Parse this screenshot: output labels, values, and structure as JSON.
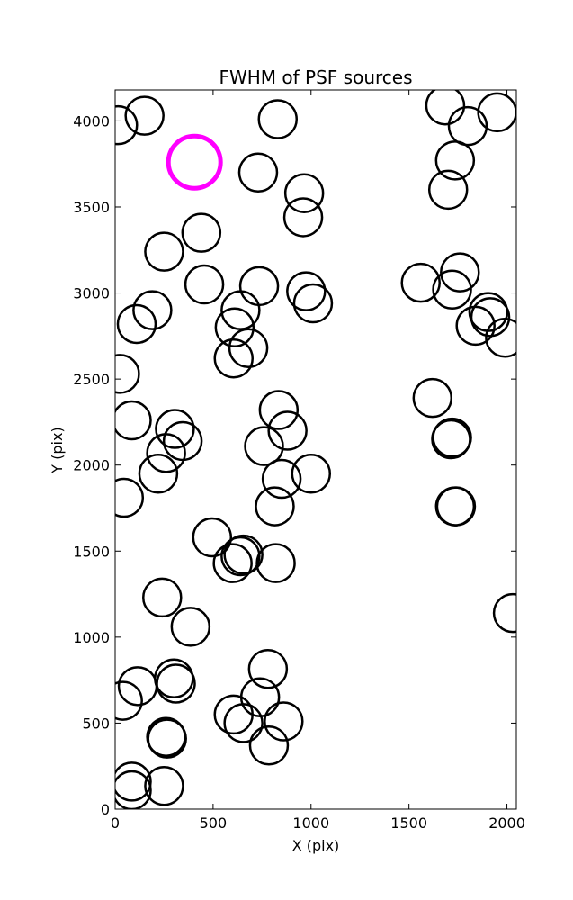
{
  "chart_data": {
    "type": "scatter",
    "title": "FWHM of PSF sources",
    "xlabel": "X (pix)",
    "ylabel": "Y (pix)",
    "xlim": [
      0,
      2048
    ],
    "ylim": [
      0,
      4180
    ],
    "xticks": [
      0,
      500,
      1000,
      1500,
      2000
    ],
    "yticks": [
      0,
      500,
      1000,
      1500,
      2000,
      2500,
      3000,
      3500,
      4000
    ],
    "grid": false,
    "marker": "open circle",
    "highlight_color": "#ff00ff",
    "default_color": "#000000",
    "points": [
      {
        "x": 15,
        "y": 3975
      },
      {
        "x": 150,
        "y": 4030
      },
      {
        "x": 830,
        "y": 4010
      },
      {
        "x": 1685,
        "y": 4090
      },
      {
        "x": 1800,
        "y": 3970
      },
      {
        "x": 1950,
        "y": 4050
      },
      {
        "x": 730,
        "y": 3700
      },
      {
        "x": 1735,
        "y": 3770
      },
      {
        "x": 965,
        "y": 3580
      },
      {
        "x": 1700,
        "y": 3600
      },
      {
        "x": 960,
        "y": 3440
      },
      {
        "x": 440,
        "y": 3350
      },
      {
        "x": 250,
        "y": 3240
      },
      {
        "x": 1760,
        "y": 3120
      },
      {
        "x": 455,
        "y": 3050
      },
      {
        "x": 735,
        "y": 3040
      },
      {
        "x": 1560,
        "y": 3060
      },
      {
        "x": 975,
        "y": 3010
      },
      {
        "x": 1720,
        "y": 3020
      },
      {
        "x": 1010,
        "y": 2940
      },
      {
        "x": 190,
        "y": 2900
      },
      {
        "x": 640,
        "y": 2900
      },
      {
        "x": 1905,
        "y": 2890
      },
      {
        "x": 110,
        "y": 2820
      },
      {
        "x": 610,
        "y": 2800
      },
      {
        "x": 1840,
        "y": 2810
      },
      {
        "x": 1915,
        "y": 2860
      },
      {
        "x": 1990,
        "y": 2740
      },
      {
        "x": 680,
        "y": 2680
      },
      {
        "x": 605,
        "y": 2620
      },
      {
        "x": 25,
        "y": 2530
      },
      {
        "x": 1620,
        "y": 2390
      },
      {
        "x": 835,
        "y": 2320
      },
      {
        "x": 85,
        "y": 2260
      },
      {
        "x": 305,
        "y": 2210
      },
      {
        "x": 880,
        "y": 2200
      },
      {
        "x": 345,
        "y": 2140
      },
      {
        "x": 1720,
        "y": 2160
      },
      {
        "x": 1715,
        "y": 2150
      },
      {
        "x": 760,
        "y": 2110
      },
      {
        "x": 260,
        "y": 2070
      },
      {
        "x": 850,
        "y": 1920
      },
      {
        "x": 1000,
        "y": 1950
      },
      {
        "x": 220,
        "y": 1950
      },
      {
        "x": 45,
        "y": 1810
      },
      {
        "x": 815,
        "y": 1760
      },
      {
        "x": 1740,
        "y": 1760
      },
      {
        "x": 1735,
        "y": 1760
      },
      {
        "x": 495,
        "y": 1580
      },
      {
        "x": 640,
        "y": 1470
      },
      {
        "x": 655,
        "y": 1480
      },
      {
        "x": 600,
        "y": 1430
      },
      {
        "x": 820,
        "y": 1430
      },
      {
        "x": 240,
        "y": 1230
      },
      {
        "x": 385,
        "y": 1060
      },
      {
        "x": 2030,
        "y": 1140
      },
      {
        "x": 780,
        "y": 815
      },
      {
        "x": 300,
        "y": 760
      },
      {
        "x": 115,
        "y": 715
      },
      {
        "x": 310,
        "y": 730
      },
      {
        "x": 740,
        "y": 650
      },
      {
        "x": 40,
        "y": 630
      },
      {
        "x": 605,
        "y": 550
      },
      {
        "x": 655,
        "y": 500
      },
      {
        "x": 860,
        "y": 510
      },
      {
        "x": 265,
        "y": 410
      },
      {
        "x": 260,
        "y": 420
      },
      {
        "x": 785,
        "y": 370
      },
      {
        "x": 85,
        "y": 160
      },
      {
        "x": 85,
        "y": 110
      },
      {
        "x": 250,
        "y": 135
      }
    ],
    "highlight_points": [
      {
        "x": 405,
        "y": 3760
      }
    ]
  }
}
